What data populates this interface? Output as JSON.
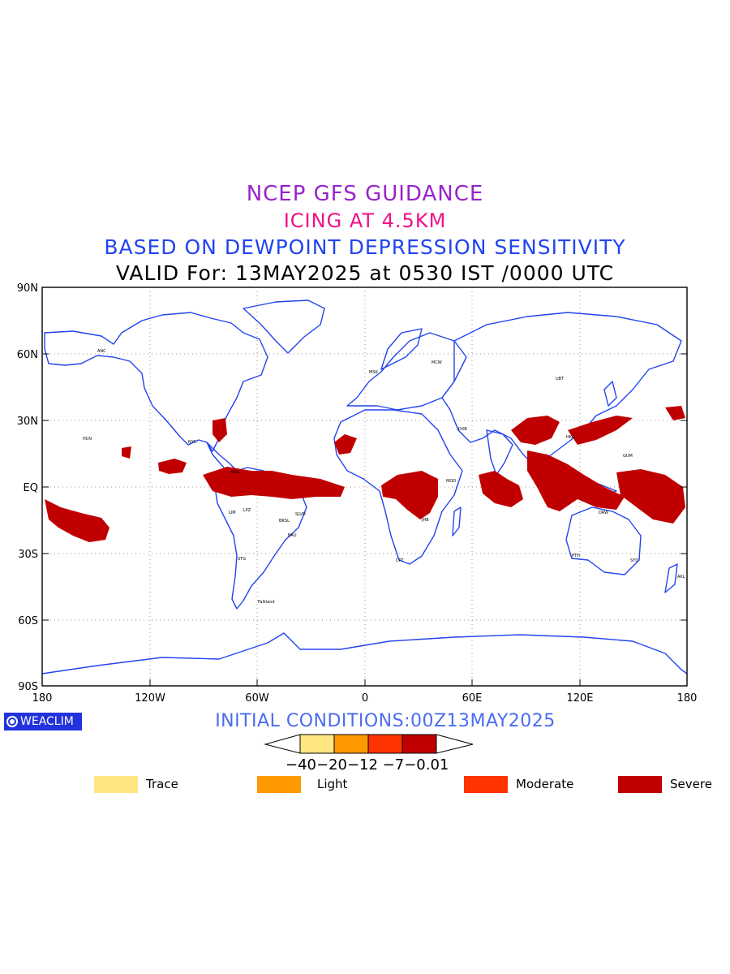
{
  "titles": {
    "line1": "NCEP GFS GUIDANCE",
    "line2": "ICING AT 4.5KM",
    "line3": "BASED ON DEWPOINT DEPRESSION SENSITIVITY",
    "line4": "VALID For: 13MAY2025 at 0530 IST /0000 UTC"
  },
  "colors": {
    "title1": "#9922cc",
    "title2": "#ee1188",
    "title3": "#2244ee",
    "coast": "#2244ee",
    "severe": "#c00000",
    "moderate": "#ff3300",
    "light": "#ff9900",
    "trace": "#ffe680"
  },
  "axes": {
    "lat_labels": [
      "90N",
      "60N",
      "30N",
      "EQ",
      "30S",
      "60S",
      "90S"
    ],
    "lon_labels": [
      "180",
      "120W",
      "60W",
      "0",
      "60E",
      "120E",
      "180"
    ]
  },
  "logo": "WEACLIM",
  "initial_conditions": "INITIAL CONDITIONS:00Z13MAY2025",
  "colorbar": {
    "tick_labels": "−40−20−12 −7−0.01"
  },
  "legend": [
    {
      "label": "Trace",
      "color": "#ffe680"
    },
    {
      "label": "Light",
      "color": "#ff9900"
    },
    {
      "label": "Moderate",
      "color": "#ff3300"
    },
    {
      "label": "Severe",
      "color": "#c00000"
    }
  ],
  "map_labels": [
    "ANC",
    "MSK",
    "MCW",
    "HCN",
    "NYC",
    "Falkland",
    "CPT",
    "JHB",
    "DXB",
    "HKG",
    "SYD",
    "AKL",
    "GUM",
    "DRW",
    "PTH",
    "UBT",
    "MOD",
    "LPZ",
    "BRSL",
    "SLVD",
    "STG",
    "BAU",
    "LIM",
    "BOG"
  ]
}
